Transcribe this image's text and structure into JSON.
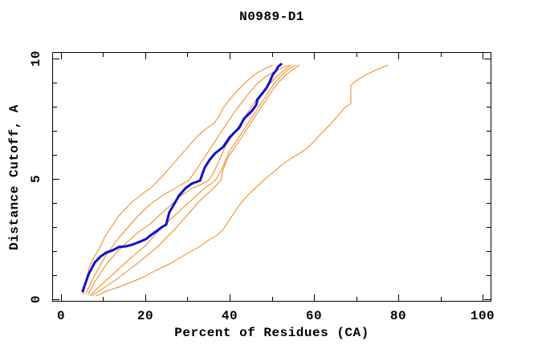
{
  "chart_data": {
    "type": "line",
    "title": "N0989-D1",
    "xlabel": "Percent of Residues (CA)",
    "ylabel": "Distance Cutoff, A",
    "xlim": [
      -2,
      102
    ],
    "ylim": [
      -0.1,
      10.27
    ],
    "x_major_ticks": [
      0,
      20,
      40,
      60,
      80,
      100
    ],
    "x_minor_ticks": [
      10,
      30,
      50,
      70,
      90
    ],
    "y_major_ticks": [
      0,
      5,
      10
    ],
    "y_minor_ticks": [
      1,
      2,
      3,
      4,
      6,
      7,
      8,
      9
    ],
    "grid": false,
    "legend": "none",
    "axis_color": "#000000",
    "background_color": "#ffffff",
    "series": [
      {
        "name": "orange-1",
        "color": "#f08418",
        "width": 1,
        "points": [
          [
            5.4,
            0.2
          ],
          [
            6,
            0.75
          ],
          [
            6.8,
            1.35
          ],
          [
            8,
            1.77
          ],
          [
            9.4,
            2.2
          ],
          [
            10.5,
            2.6
          ],
          [
            12,
            3
          ],
          [
            13.5,
            3.4
          ],
          [
            15,
            3.7
          ],
          [
            17,
            4.05
          ],
          [
            19.5,
            4.4
          ],
          [
            21.5,
            4.65
          ],
          [
            23.1,
            4.93
          ],
          [
            24.5,
            5.2
          ],
          [
            26,
            5.5
          ],
          [
            27.5,
            5.8
          ],
          [
            29,
            6.1
          ],
          [
            30.5,
            6.4
          ],
          [
            32.5,
            6.8
          ],
          [
            34.5,
            7.1
          ],
          [
            36.4,
            7.33
          ],
          [
            37.5,
            7.6
          ],
          [
            38.5,
            7.95
          ],
          [
            40,
            8.3
          ],
          [
            42,
            8.7
          ],
          [
            44,
            9.05
          ],
          [
            46,
            9.35
          ],
          [
            48,
            9.55
          ],
          [
            50.2,
            9.73
          ]
        ]
      },
      {
        "name": "orange-2",
        "color": "#f08418",
        "width": 1,
        "points": [
          [
            6,
            0.25
          ],
          [
            7.5,
            0.8
          ],
          [
            9,
            1.3
          ],
          [
            10.5,
            1.75
          ],
          [
            12.3,
            2.2
          ],
          [
            14,
            2.6
          ],
          [
            16,
            3
          ],
          [
            18,
            3.4
          ],
          [
            20,
            3.75
          ],
          [
            22,
            4.05
          ],
          [
            24.5,
            4.35
          ],
          [
            27,
            4.6
          ],
          [
            30.3,
            4.93
          ],
          [
            32,
            5.35
          ],
          [
            33.5,
            5.75
          ],
          [
            35,
            6.15
          ],
          [
            36.5,
            6.55
          ],
          [
            38,
            6.95
          ],
          [
            39.5,
            7.35
          ],
          [
            41,
            7.75
          ],
          [
            42.8,
            8.15
          ],
          [
            44.5,
            8.55
          ],
          [
            46.5,
            8.95
          ],
          [
            48.5,
            9.25
          ],
          [
            51,
            9.5
          ],
          [
            54,
            9.73
          ]
        ]
      },
      {
        "name": "orange-3",
        "color": "#f08418",
        "width": 1,
        "points": [
          [
            6.5,
            0.2
          ],
          [
            8,
            0.7
          ],
          [
            9.5,
            1.1
          ],
          [
            11,
            1.5
          ],
          [
            13,
            1.9
          ],
          [
            14.7,
            2.2
          ],
          [
            16.5,
            2.5
          ],
          [
            18.5,
            2.8
          ],
          [
            21,
            3.1
          ],
          [
            23.5,
            3.5
          ],
          [
            26,
            3.9
          ],
          [
            28.5,
            4.3
          ],
          [
            31,
            4.6
          ],
          [
            33,
            4.75
          ],
          [
            35,
            4.93
          ],
          [
            36,
            5.2
          ],
          [
            37,
            5.55
          ],
          [
            38,
            5.95
          ],
          [
            39,
            6.35
          ],
          [
            40.5,
            6.75
          ],
          [
            42,
            7.15
          ],
          [
            43.5,
            7.55
          ],
          [
            45,
            7.95
          ],
          [
            46.5,
            8.35
          ],
          [
            48.5,
            8.75
          ],
          [
            50.5,
            9.15
          ],
          [
            52.5,
            9.45
          ],
          [
            54.5,
            9.73
          ]
        ]
      },
      {
        "name": "orange-4",
        "color": "#f08418",
        "width": 1,
        "points": [
          [
            7,
            0.15
          ],
          [
            9,
            0.5
          ],
          [
            11.5,
            0.9
          ],
          [
            14,
            1.3
          ],
          [
            16.5,
            1.7
          ],
          [
            19.9,
            2.2
          ],
          [
            22,
            2.6
          ],
          [
            24,
            3
          ],
          [
            26.5,
            3.4
          ],
          [
            29,
            3.8
          ],
          [
            31.5,
            4.2
          ],
          [
            34,
            4.6
          ],
          [
            36.6,
            4.93
          ],
          [
            38,
            5.35
          ],
          [
            39,
            5.75
          ],
          [
            40,
            6.15
          ],
          [
            41.5,
            6.55
          ],
          [
            43,
            6.95
          ],
          [
            44.5,
            7.35
          ],
          [
            46,
            7.75
          ],
          [
            47.5,
            8.15
          ],
          [
            49,
            8.55
          ],
          [
            50.5,
            8.95
          ],
          [
            52,
            9.25
          ],
          [
            54,
            9.55
          ],
          [
            55.5,
            9.73
          ]
        ]
      },
      {
        "name": "orange-5",
        "color": "#f08418",
        "width": 1,
        "points": [
          [
            7.5,
            0.15
          ],
          [
            10,
            0.45
          ],
          [
            13,
            0.8
          ],
          [
            16,
            1.2
          ],
          [
            19,
            1.6
          ],
          [
            21,
            1.9
          ],
          [
            23.1,
            2.2
          ],
          [
            25,
            2.55
          ],
          [
            27,
            2.9
          ],
          [
            29,
            3.3
          ],
          [
            31,
            3.7
          ],
          [
            33,
            4.1
          ],
          [
            35.5,
            4.5
          ],
          [
            37.9,
            4.93
          ],
          [
            38.5,
            5.4
          ],
          [
            39.5,
            5.85
          ],
          [
            41,
            6.25
          ],
          [
            42.5,
            6.65
          ],
          [
            44,
            7.05
          ],
          [
            45.5,
            7.45
          ],
          [
            47,
            7.85
          ],
          [
            48.5,
            8.25
          ],
          [
            50,
            8.65
          ],
          [
            51.5,
            9
          ],
          [
            53.5,
            9.35
          ],
          [
            55,
            9.55
          ],
          [
            56.5,
            9.73
          ]
        ]
      },
      {
        "name": "orange-6",
        "color": "#f08418",
        "width": 1,
        "points": [
          [
            8.5,
            0.15
          ],
          [
            11,
            0.35
          ],
          [
            14,
            0.52
          ],
          [
            17,
            0.73
          ],
          [
            20,
            0.95
          ],
          [
            22.5,
            1.2
          ],
          [
            25.6,
            1.45
          ],
          [
            28.5,
            1.75
          ],
          [
            31,
            2
          ],
          [
            33,
            2.2
          ],
          [
            35,
            2.45
          ],
          [
            37,
            2.65
          ],
          [
            38.5,
            2.9
          ],
          [
            40,
            3.3
          ],
          [
            41.5,
            3.7
          ],
          [
            42.7,
            4
          ],
          [
            44.5,
            4.35
          ],
          [
            46,
            4.6
          ],
          [
            48.4,
            5
          ],
          [
            50.5,
            5.3
          ],
          [
            52.5,
            5.6
          ],
          [
            54.5,
            5.85
          ],
          [
            56.5,
            6.05
          ],
          [
            58.5,
            6.3
          ],
          [
            60.5,
            6.65
          ],
          [
            62,
            6.95
          ],
          [
            63.5,
            7.2
          ],
          [
            65.5,
            7.6
          ],
          [
            67.5,
            8
          ],
          [
            68.7,
            8.12
          ],
          [
            68.7,
            8.9
          ],
          [
            70.5,
            9.15
          ],
          [
            72.5,
            9.35
          ],
          [
            75,
            9.55
          ],
          [
            77.5,
            9.73
          ]
        ]
      },
      {
        "name": "blue-highlight",
        "color": "#1010d0",
        "width": 3,
        "points": [
          [
            5.2,
            0.33
          ],
          [
            6.6,
            1.03
          ],
          [
            8.1,
            1.53
          ],
          [
            9.4,
            1.77
          ],
          [
            10.7,
            1.93
          ],
          [
            12.3,
            2.03
          ],
          [
            13.8,
            2.17
          ],
          [
            15.5,
            2.2
          ],
          [
            17,
            2.27
          ],
          [
            18.5,
            2.37
          ],
          [
            20.2,
            2.5
          ],
          [
            21.4,
            2.67
          ],
          [
            22.7,
            2.83
          ],
          [
            24,
            3
          ],
          [
            25,
            3.1
          ],
          [
            25.7,
            3.6
          ],
          [
            26.8,
            3.93
          ],
          [
            28,
            4.3
          ],
          [
            29.5,
            4.6
          ],
          [
            31,
            4.8
          ],
          [
            33,
            4.93
          ],
          [
            34.1,
            5.47
          ],
          [
            35.3,
            5.8
          ],
          [
            36.6,
            6.07
          ],
          [
            38.5,
            6.33
          ],
          [
            40,
            6.73
          ],
          [
            42.3,
            7.13
          ],
          [
            43.4,
            7.5
          ],
          [
            45.3,
            7.83
          ],
          [
            46.3,
            8.07
          ],
          [
            46.6,
            8.3
          ],
          [
            47.5,
            8.5
          ],
          [
            48.8,
            8.8
          ],
          [
            49.5,
            9.03
          ],
          [
            50.2,
            9.33
          ],
          [
            51,
            9.5
          ],
          [
            51.5,
            9.67
          ],
          [
            52.2,
            9.77
          ]
        ]
      }
    ]
  }
}
